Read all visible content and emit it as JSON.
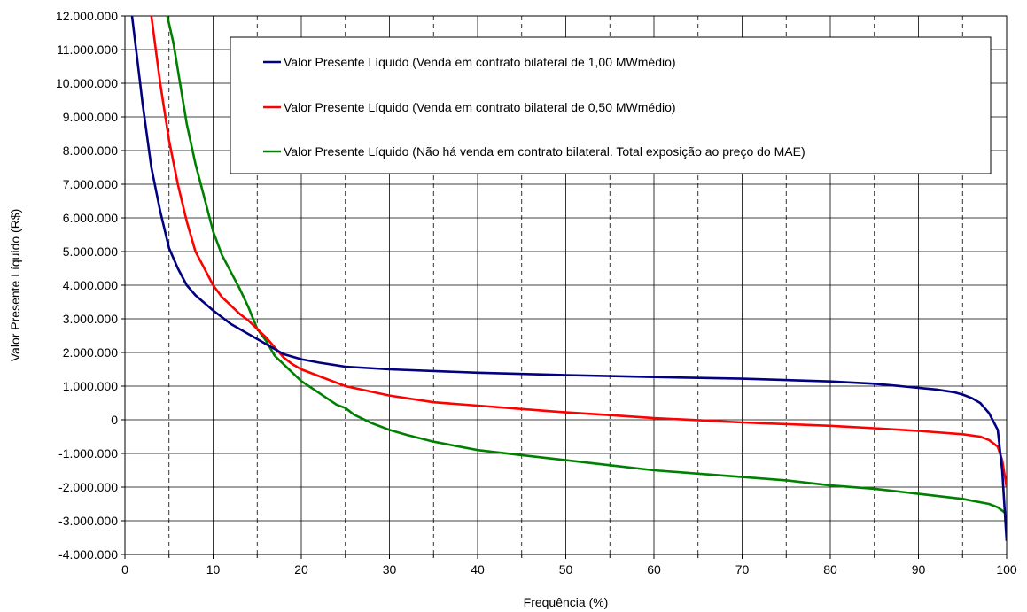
{
  "chart_data": {
    "type": "line",
    "title": "",
    "xlabel": "Frequência (%)",
    "ylabel": "Valor Presente Líquido (R$)",
    "xlim": [
      0,
      100
    ],
    "ylim": [
      -4000000,
      12000000
    ],
    "x_ticks": [
      0,
      10,
      20,
      30,
      40,
      50,
      60,
      70,
      80,
      90,
      100
    ],
    "x_tick_labels": [
      "0",
      "10",
      "20",
      "30",
      "40",
      "50",
      "60",
      "70",
      "80",
      "90",
      "100"
    ],
    "x_minor_dashed_gridlines": [
      5,
      15,
      25,
      35,
      45,
      55,
      65,
      75,
      85,
      95
    ],
    "y_ticks": [
      -4000000,
      -3000000,
      -2000000,
      -1000000,
      0,
      1000000,
      2000000,
      3000000,
      4000000,
      5000000,
      6000000,
      7000000,
      8000000,
      9000000,
      10000000,
      11000000,
      12000000
    ],
    "y_tick_labels": [
      "-4.000.000",
      "-3.000.000",
      "-2.000.000",
      "-1.000.000",
      "0",
      "1.000.000",
      "2.000.000",
      "3.000.000",
      "4.000.000",
      "5.000.000",
      "6.000.000",
      "7.000.000",
      "8.000.000",
      "9.000.000",
      "10.000.000",
      "11.000.000",
      "12.000.000"
    ],
    "grid": true,
    "legend_position": "top-right",
    "series": [
      {
        "name": "Valor Presente Líquido (Venda em contrato bilateral de 1,00 MWmédio)",
        "color": "#000080",
        "x": [
          0.8,
          1.5,
          2,
          3,
          4,
          5,
          6,
          7,
          8,
          10,
          12,
          14,
          16,
          18,
          20,
          22,
          25,
          30,
          40,
          50,
          60,
          70,
          80,
          85,
          90,
          92,
          94,
          95,
          96,
          97,
          98,
          99,
          99.5,
          100
        ],
        "y": [
          12000000,
          10500000,
          9400000,
          7500000,
          6200000,
          5100000,
          4500000,
          4000000,
          3700000,
          3250000,
          2850000,
          2550000,
          2250000,
          1950000,
          1800000,
          1700000,
          1580000,
          1500000,
          1400000,
          1330000,
          1270000,
          1220000,
          1140000,
          1070000,
          950000,
          900000,
          820000,
          750000,
          650000,
          500000,
          200000,
          -300000,
          -1500000,
          -3600000
        ]
      },
      {
        "name": "Valor Presente Líquido (Venda em contrato bilateral de 0,50 MWmédio)",
        "color": "#ff0000",
        "x": [
          3,
          3.5,
          4,
          5,
          6,
          7,
          8,
          9,
          10,
          11,
          12,
          13,
          14,
          15,
          16,
          17,
          18,
          19,
          20,
          22,
          25,
          30,
          35,
          40,
          45,
          50,
          55,
          60,
          65,
          70,
          75,
          80,
          85,
          90,
          95,
          97,
          98,
          99,
          99.5,
          100
        ],
        "y": [
          12000000,
          11000000,
          10000000,
          8300000,
          7000000,
          5900000,
          5000000,
          4500000,
          4000000,
          3650000,
          3400000,
          3150000,
          2950000,
          2700000,
          2450000,
          2150000,
          1850000,
          1650000,
          1500000,
          1300000,
          1000000,
          720000,
          520000,
          420000,
          320000,
          220000,
          140000,
          50000,
          -10000,
          -80000,
          -130000,
          -180000,
          -250000,
          -330000,
          -430000,
          -500000,
          -600000,
          -800000,
          -1200000,
          -2000000
        ]
      },
      {
        "name": "Valor Presente Líquido (Não há venda em contrato bilateral. Total exposição ao preço do MAE)",
        "color": "#008000",
        "x": [
          4.8,
          5.5,
          6,
          7,
          8,
          9,
          10,
          11,
          12,
          13,
          14,
          15,
          16,
          17,
          18,
          20,
          22,
          24,
          25,
          26,
          28,
          30,
          32,
          35,
          40,
          45,
          50,
          55,
          60,
          65,
          70,
          75,
          80,
          85,
          90,
          95,
          97,
          98,
          99,
          100
        ],
        "y": [
          12000000,
          11200000,
          10400000,
          8800000,
          7600000,
          6600000,
          5600000,
          4900000,
          4400000,
          3900000,
          3350000,
          2700000,
          2350000,
          1900000,
          1650000,
          1150000,
          800000,
          450000,
          350000,
          150000,
          -100000,
          -300000,
          -450000,
          -650000,
          -900000,
          -1050000,
          -1200000,
          -1350000,
          -1500000,
          -1600000,
          -1700000,
          -1800000,
          -1950000,
          -2050000,
          -2200000,
          -2350000,
          -2450000,
          -2500000,
          -2600000,
          -2800000
        ]
      }
    ]
  }
}
